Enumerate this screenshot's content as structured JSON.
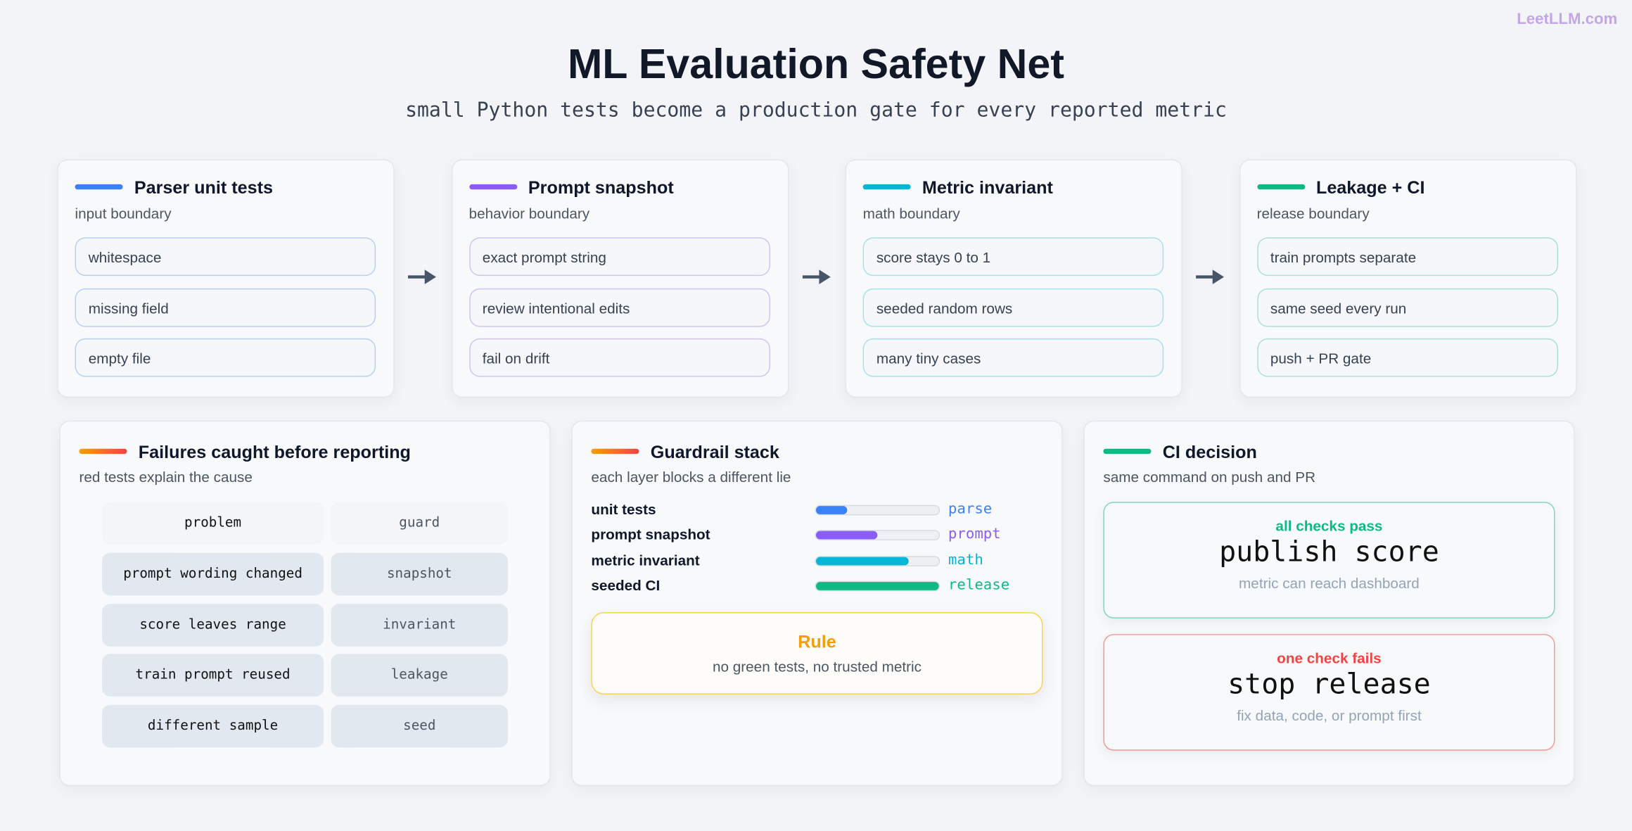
{
  "brand": "LeetLLM.com",
  "header": {
    "title": "ML Evaluation Safety Net",
    "subtitle": "small Python tests become a production gate for every reported metric"
  },
  "stages": [
    {
      "title": "Parser unit tests",
      "subtitle": "input boundary",
      "color": "#3b82f6",
      "items": [
        "whitespace",
        "missing field",
        "empty file"
      ]
    },
    {
      "title": "Prompt snapshot",
      "subtitle": "behavior boundary",
      "color": "#8b5cf6",
      "items": [
        "exact prompt string",
        "review intentional edits",
        "fail on drift"
      ]
    },
    {
      "title": "Metric invariant",
      "subtitle": "math boundary",
      "color": "#06b6d4",
      "items": [
        "score stays 0 to 1",
        "seeded random rows",
        "many tiny cases"
      ]
    },
    {
      "title": "Leakage + CI",
      "subtitle": "release boundary",
      "color": "#10b981",
      "items": [
        "train prompts separate",
        "same seed every run",
        "push + PR gate"
      ]
    }
  ],
  "failures": {
    "title": "Failures caught before reporting",
    "subtitle": "red tests explain the cause",
    "columns": [
      "problem",
      "guard"
    ],
    "rows": [
      [
        "prompt wording changed",
        "snapshot"
      ],
      [
        "score leaves range",
        "invariant"
      ],
      [
        "train prompt reused",
        "leakage"
      ],
      [
        "different sample",
        "seed"
      ]
    ]
  },
  "guardrails": {
    "title": "Guardrail stack",
    "subtitle": "each layer blocks a different lie",
    "layers": [
      {
        "name": "unit tests",
        "tag": "parse",
        "color": "#3b82f6",
        "level": 25
      },
      {
        "name": "prompt snapshot",
        "tag": "prompt",
        "color": "#8b5cf6",
        "level": 50
      },
      {
        "name": "metric invariant",
        "tag": "math",
        "color": "#06b6d4",
        "level": 75
      },
      {
        "name": "seeded CI",
        "tag": "release",
        "color": "#10b981",
        "level": 100
      }
    ],
    "rule": {
      "title": "Rule",
      "text": "no green tests, no trusted metric"
    }
  },
  "ci": {
    "title": "CI decision",
    "subtitle": "same command on push and PR",
    "outcomes": [
      {
        "status": "all checks pass",
        "action": "publish score",
        "note": "metric can reach dashboard",
        "color": "#10b981"
      },
      {
        "status": "one check fails",
        "action": "stop release",
        "note": "fix data, code, or prompt first",
        "color": "#ef4444"
      }
    ]
  }
}
